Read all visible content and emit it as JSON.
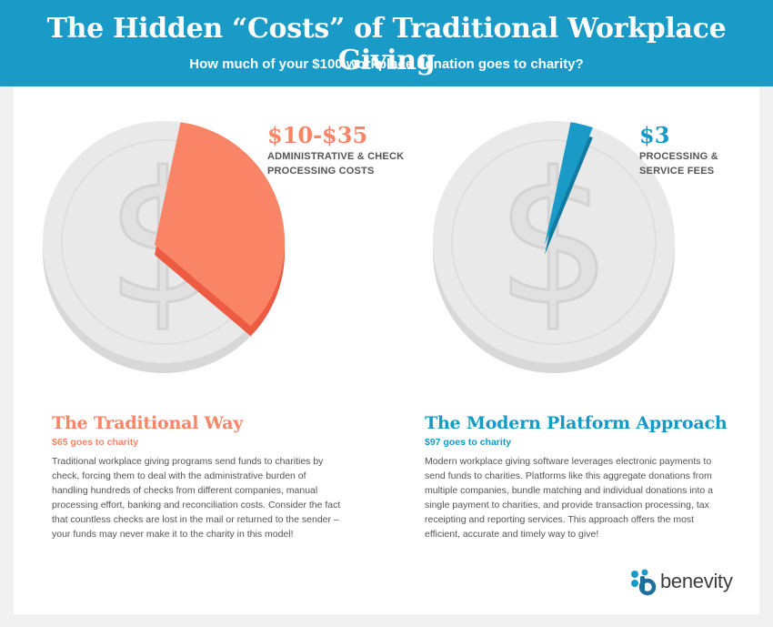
{
  "header": {
    "title": "The Hidden “Costs” of Traditional Workplace Giving",
    "subtitle": "How much of your $100 workplace donation goes to charity?"
  },
  "left": {
    "callout_amount": "$10-$35",
    "callout_label_line1": "ADMINISTRATIVE & CHECK",
    "callout_label_line2": "PROCESSING COSTS",
    "title": "The Traditional Way",
    "subtitle": "$65 goes to charity",
    "body": [
      "Traditional workplace giving programs send funds to charities by",
      "check, forcing them to deal with the administrative burden of",
      "handling hundreds of checks from different companies, manual",
      "processing effort, banking and reconciliation costs. Consider the fact",
      "that countless checks are lost in the mail or returned to the sender –",
      "your funds may never make it to the charity in this model!"
    ],
    "slice_fraction": 0.35,
    "slice_color": "#f98566",
    "slice_shadow_color": "#ee5b43"
  },
  "right": {
    "callout_amount": "$3",
    "callout_label_line1": "PROCESSING &",
    "callout_label_line2": "SERVICE FEES",
    "title": "The Modern Platform Approach",
    "subtitle": "$97 goes to charity",
    "body": [
      "Modern workplace giving software leverages electronic payments to",
      "send funds to charities. Platforms like this aggregate donations from",
      "multiple companies, bundle matching and individual donations into a",
      "single payment to charities, and provide transaction processing, tax",
      "receipting and reporting services. This approach offers the most",
      "efficient, accurate and timely way to give!"
    ],
    "slice_fraction": 0.03,
    "slice_color": "#199ac7",
    "slice_shadow_color": "#127aa0"
  },
  "logo": {
    "word": "benevity",
    "icon": "benevity-logo-icon"
  },
  "colors": {
    "header": "#199ac7",
    "accent_orange": "#f98566",
    "accent_blue": "#1599c6",
    "coin": "#e9e9e9",
    "coin_edge": "#d4d4d4"
  }
}
